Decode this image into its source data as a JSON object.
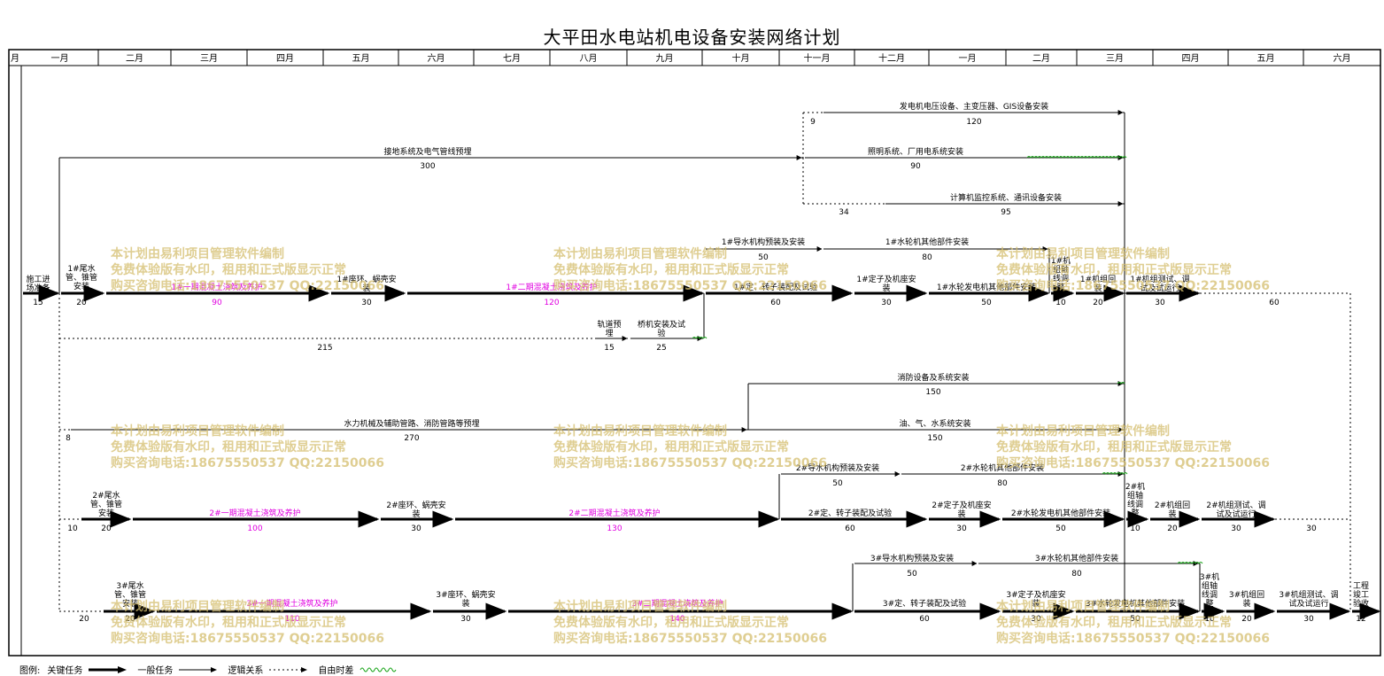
{
  "title": "大平田水电站机电设备安装网络计划",
  "colors": {
    "critical": "#000000",
    "concrete_label": "#e000e0",
    "float": "#1aa51a",
    "watermark": "#d4be6e"
  },
  "timeline": {
    "first_label": "月",
    "months": [
      "一月",
      "二月",
      "三月",
      "四月",
      "五月",
      "六月",
      "七月",
      "八月",
      "九月",
      "十月",
      "十一月",
      "十二月",
      "一月",
      "二月",
      "三月",
      "四月",
      "五月",
      "六月"
    ]
  },
  "watermark": {
    "line1": "本计划由易利项目管理软件编制",
    "line2": "免费体验版有水印，租用和正式版显示正常",
    "line3": "购买咨询电话:18675550537 QQ:22150066"
  },
  "legend": {
    "prefix": "图例:",
    "critical": "关键任务",
    "general": "一般任务",
    "logic": "逻辑关系",
    "float": "自由时差"
  },
  "labels": [
    {
      "id": "t-shigong",
      "text": "施工进\n场准备"
    },
    {
      "id": "d-shigong",
      "text": "15"
    },
    {
      "id": "t-u1-weishui",
      "text": "1#尾水\n管、锥管\n安装"
    },
    {
      "id": "d-u1-weishui",
      "text": "20"
    },
    {
      "id": "t-u1-yiqi",
      "text": "1#一期混凝土浇筑及养护"
    },
    {
      "id": "d-u1-yiqi",
      "text": "90"
    },
    {
      "id": "t-u1-zuohuan",
      "text": "1#座环、蜗壳安\n装"
    },
    {
      "id": "d-u1-zuohuan",
      "text": "30"
    },
    {
      "id": "t-u1-erqi",
      "text": "1#二期混凝土浇筑及养护"
    },
    {
      "id": "d-u1-erqi",
      "text": "120"
    },
    {
      "id": "t-u1-daoshui",
      "text": "1#导水机构预装及安装"
    },
    {
      "id": "d-u1-daoshui",
      "text": "50"
    },
    {
      "id": "t-u1-shuilun",
      "text": "1#水轮机其他部件安装"
    },
    {
      "id": "d-u1-shuilun",
      "text": "80"
    },
    {
      "id": "t-u1-dingzhuan",
      "text": "1#定、转子装配及试验"
    },
    {
      "id": "d-u1-dingzhuan",
      "text": "60"
    },
    {
      "id": "t-u1-dingzi",
      "text": "1#定子及机座安\n装"
    },
    {
      "id": "d-u1-dingzi",
      "text": "30"
    },
    {
      "id": "t-u1-fadian",
      "text": "1#水轮发电机其他部件安装"
    },
    {
      "id": "d-u1-fadian",
      "text": "50"
    },
    {
      "id": "t-u1-zhouxian",
      "text": "1#机\n组轴\n线调\n整"
    },
    {
      "id": "d-u1-zhouxian",
      "text": "10"
    },
    {
      "id": "t-u1-huizhuang",
      "text": "1#机组回\n装"
    },
    {
      "id": "d-u1-huizhuang",
      "text": "20"
    },
    {
      "id": "t-u1-ceshi",
      "text": "1#机组测试、调\n试及试运行"
    },
    {
      "id": "d-u1-ceshi",
      "text": "30"
    },
    {
      "id": "d-u1-float",
      "text": "60"
    },
    {
      "id": "t-guidao",
      "text": "轨道预\n埋"
    },
    {
      "id": "d-guidao",
      "text": "15"
    },
    {
      "id": "t-qiaoji",
      "text": "桥机安装及试\n验"
    },
    {
      "id": "d-qiaoji",
      "text": "25"
    },
    {
      "id": "d-215",
      "text": "215"
    },
    {
      "id": "t-jiedi",
      "text": "接地系统及电气管线预埋"
    },
    {
      "id": "d-jiedi",
      "text": "300"
    },
    {
      "id": "t-fadianji",
      "text": "发电机电压设备、主变压器、GIS设备安装"
    },
    {
      "id": "d-fadianji",
      "text": "120"
    },
    {
      "id": "d-9",
      "text": "9"
    },
    {
      "id": "t-zhaoming",
      "text": "照明系统、厂用电系统安装"
    },
    {
      "id": "d-zhaoming",
      "text": "90"
    },
    {
      "id": "t-jisuanji",
      "text": "计算机监控系统、通讯设备安装"
    },
    {
      "id": "d-jisuanji",
      "text": "95"
    },
    {
      "id": "d-34",
      "text": "34"
    },
    {
      "id": "t-xiaofang",
      "text": "消防设备及系统安装"
    },
    {
      "id": "d-xiaofang",
      "text": "150"
    },
    {
      "id": "t-shuili",
      "text": "水力机械及辅助管路、消防管路等预埋"
    },
    {
      "id": "d-shuili",
      "text": "270"
    },
    {
      "id": "d-8",
      "text": "8"
    },
    {
      "id": "t-you",
      "text": "油、气、水系统安装"
    },
    {
      "id": "d-you",
      "text": "150"
    },
    {
      "id": "d-u2-lead",
      "text": "10"
    },
    {
      "id": "t-u2-weishui",
      "text": "2#尾水\n管、锥管\n安装"
    },
    {
      "id": "d-u2-weishui",
      "text": "20"
    },
    {
      "id": "t-u2-yiqi",
      "text": "2#一期混凝土浇筑及养护"
    },
    {
      "id": "d-u2-yiqi",
      "text": "100"
    },
    {
      "id": "t-u2-zuohuan",
      "text": "2#座环、蜗壳安\n装"
    },
    {
      "id": "d-u2-zuohuan",
      "text": "30"
    },
    {
      "id": "t-u2-erqi",
      "text": "2#二期混凝土浇筑及养护"
    },
    {
      "id": "d-u2-erqi",
      "text": "130"
    },
    {
      "id": "t-u2-daoshui",
      "text": "2#导水机构预装及安装"
    },
    {
      "id": "d-u2-daoshui",
      "text": "50"
    },
    {
      "id": "t-u2-shuilun",
      "text": "2#水轮机其他部件安装"
    },
    {
      "id": "d-u2-shuilun",
      "text": "80"
    },
    {
      "id": "t-u2-dingzhuan",
      "text": "2#定、转子装配及试验"
    },
    {
      "id": "d-u2-dingzhuan",
      "text": "60"
    },
    {
      "id": "t-u2-dingzi",
      "text": "2#定子及机座安\n装"
    },
    {
      "id": "d-u2-dingzi",
      "text": "30"
    },
    {
      "id": "t-u2-fadian",
      "text": "2#水轮发电机其他部件安装"
    },
    {
      "id": "d-u2-fadian",
      "text": "50"
    },
    {
      "id": "t-u2-zhouxian",
      "text": "2#机\n组轴\n线调\n整"
    },
    {
      "id": "d-u2-zhouxian",
      "text": "10"
    },
    {
      "id": "t-u2-huizhuang",
      "text": "2#机组回\n装"
    },
    {
      "id": "d-u2-huizhuang",
      "text": "20"
    },
    {
      "id": "t-u2-ceshi",
      "text": "2#机组测试、调\n试及试运行"
    },
    {
      "id": "d-u2-ceshi",
      "text": "30"
    },
    {
      "id": "d-u2-float",
      "text": "30"
    },
    {
      "id": "d-u3-lead",
      "text": "20"
    },
    {
      "id": "t-u3-weishui",
      "text": "3#尾水\n管、锥管\n安装"
    },
    {
      "id": "d-u3-weishui",
      "text": "20"
    },
    {
      "id": "t-u3-yiqi",
      "text": "3#一期混凝土浇筑及养护"
    },
    {
      "id": "d-u3-yiqi",
      "text": "110"
    },
    {
      "id": "t-u3-zuohuan",
      "text": "3#座环、蜗壳安\n装"
    },
    {
      "id": "d-u3-zuohuan",
      "text": "30"
    },
    {
      "id": "t-u3-erqi",
      "text": "3#二期混凝土浇筑及养护"
    },
    {
      "id": "d-u3-erqi",
      "text": "140"
    },
    {
      "id": "t-u3-daoshui",
      "text": "3#导水机构预装及安装"
    },
    {
      "id": "d-u3-daoshui",
      "text": "50"
    },
    {
      "id": "t-u3-shuilun",
      "text": "3#水轮机其他部件安装"
    },
    {
      "id": "d-u3-shuilun",
      "text": "80"
    },
    {
      "id": "t-u3-dingzhuan",
      "text": "3#定、转子装配及试验"
    },
    {
      "id": "d-u3-dingzhuan",
      "text": "60"
    },
    {
      "id": "t-u3-dingzi",
      "text": "3#定子及机座安\n装"
    },
    {
      "id": "d-u3-dingzi",
      "text": "30"
    },
    {
      "id": "t-u3-fadian",
      "text": "3#水轮发电机其他部件安装"
    },
    {
      "id": "d-u3-fadian",
      "text": "50"
    },
    {
      "id": "t-u3-zhouxian",
      "text": "3#机\n组轴\n线调\n整"
    },
    {
      "id": "d-u3-zhouxian",
      "text": "10"
    },
    {
      "id": "t-u3-huizhuang",
      "text": "3#机组回\n装"
    },
    {
      "id": "d-u3-huizhuang",
      "text": "20"
    },
    {
      "id": "t-u3-ceshi",
      "text": "3#机组测试、调\n试及试运行"
    },
    {
      "id": "d-u3-ceshi",
      "text": "30"
    },
    {
      "id": "t-yanshou",
      "text": "工程\n竣工\n验收"
    },
    {
      "id": "d-yanshou",
      "text": "12"
    }
  ]
}
